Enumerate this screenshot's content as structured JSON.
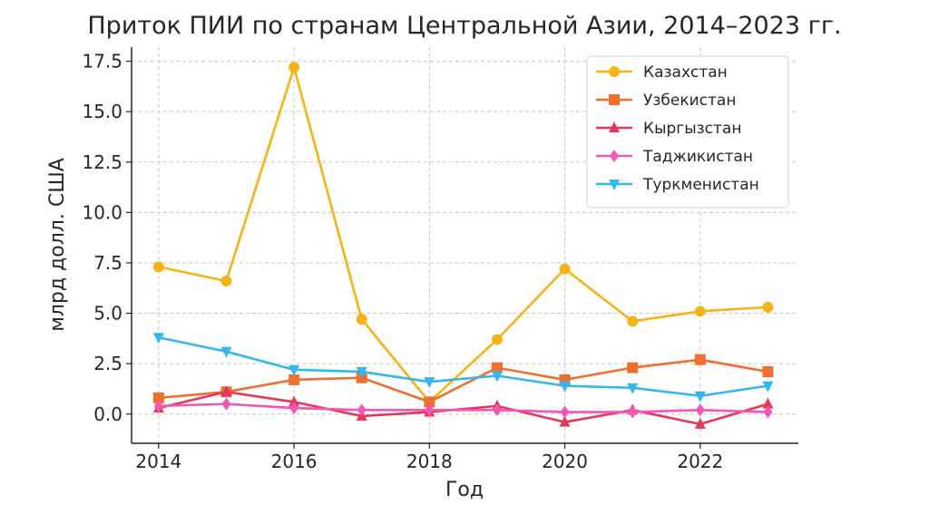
{
  "chart_data": {
    "type": "line",
    "title": "Приток ПИИ по странам Центральной Азии, 2014–2023 гг.",
    "xlabel": "Год",
    "ylabel": "млрд долл. США",
    "x": [
      2014,
      2015,
      2016,
      2017,
      2018,
      2019,
      2020,
      2021,
      2022,
      2023
    ],
    "xlim": [
      2013.6,
      2023.45
    ],
    "ylim": [
      -1.45,
      18.2
    ],
    "xticks": [
      2014,
      2016,
      2018,
      2020,
      2022
    ],
    "xtick_labels": [
      "2014",
      "2016",
      "2018",
      "2020",
      "2022"
    ],
    "yticks": [
      0,
      2.5,
      5,
      7.5,
      10,
      12.5,
      15,
      17.5
    ],
    "ytick_labels": [
      "0.0",
      "2.5",
      "5.0",
      "7.5",
      "10.0",
      "12.5",
      "15.0",
      "17.5"
    ],
    "grid": true,
    "legend_position": "top-right",
    "series": [
      {
        "name": "Казахстан",
        "color": "#f5b315",
        "marker": "circle",
        "values": [
          7.3,
          6.6,
          17.2,
          4.7,
          0.6,
          3.7,
          7.2,
          4.6,
          5.1,
          5.3
        ]
      },
      {
        "name": "Узбекистан",
        "color": "#ef6f2e",
        "marker": "square",
        "values": [
          0.8,
          1.1,
          1.7,
          1.8,
          0.6,
          2.3,
          1.7,
          2.3,
          2.7,
          2.1
        ]
      },
      {
        "name": "Кыргызстан",
        "color": "#e5375b",
        "marker": "triangle-up",
        "values": [
          0.3,
          1.1,
          0.6,
          -0.1,
          0.1,
          0.4,
          -0.4,
          0.2,
          -0.5,
          0.5
        ]
      },
      {
        "name": "Таджикистан",
        "color": "#f257b6",
        "marker": "diamond",
        "values": [
          0.4,
          0.5,
          0.3,
          0.2,
          0.2,
          0.2,
          0.1,
          0.1,
          0.2,
          0.1
        ]
      },
      {
        "name": "Туркменистан",
        "color": "#35b7ea",
        "marker": "triangle-down",
        "values": [
          3.8,
          3.1,
          2.2,
          2.1,
          1.6,
          1.9,
          1.4,
          1.3,
          0.9,
          1.4
        ]
      }
    ]
  }
}
